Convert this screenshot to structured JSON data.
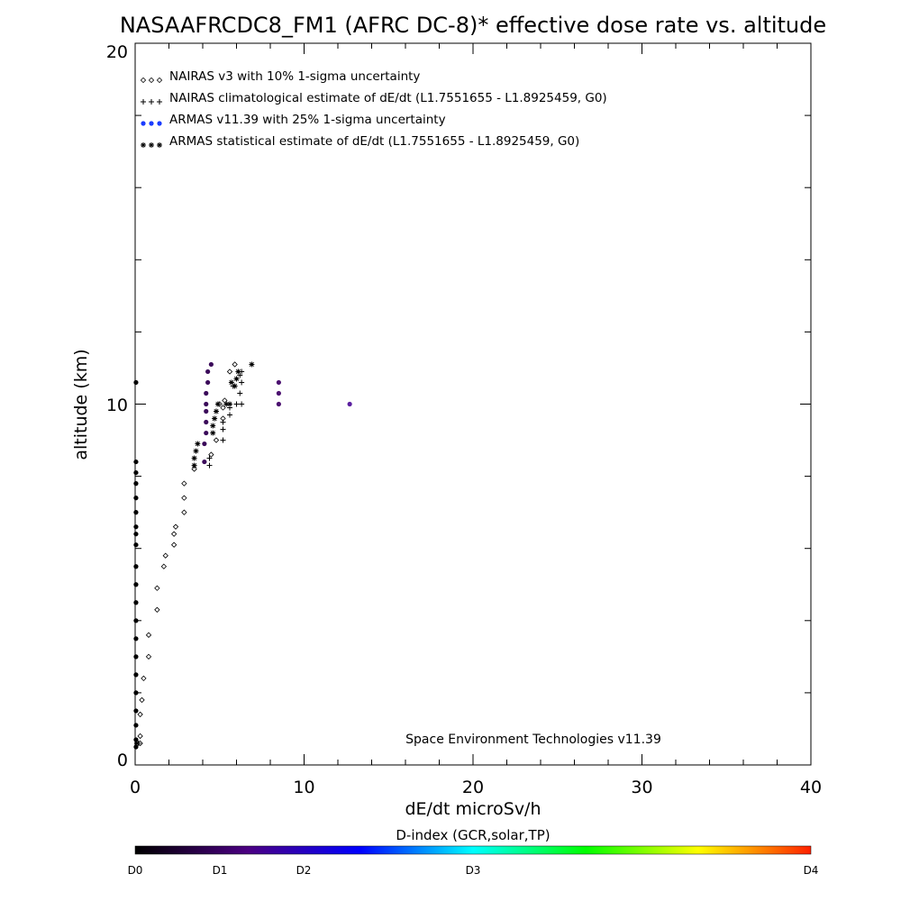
{
  "chart_data": {
    "type": "scatter",
    "title": "NASAAFRCDC8_FM1 (AFRC DC-8)* effective dose rate vs. altitude",
    "xlabel": "dE/dt microSv/h",
    "ylabel": "altitude (km)",
    "xlim": [
      0,
      40
    ],
    "ylim": [
      0,
      20
    ],
    "x_ticks": [
      "0",
      "10",
      "20",
      "30",
      "40"
    ],
    "y_ticks": [
      "0",
      "10",
      "20"
    ],
    "legend_placement": "top-left",
    "credit": "Space Environment Technologies v11.39",
    "colorbar": {
      "title": "D-index (GCR,solar,TP)",
      "labels": [
        "D0",
        "D1",
        "D2",
        "D3",
        "D4"
      ],
      "colors": [
        "#000000",
        "#4b0082",
        "#0000ff",
        "#00ffff",
        "#00ff00",
        "#ffff00",
        "#ff2000"
      ]
    },
    "series": [
      {
        "name": "NAIRAS v3 with 10% 1-sigma uncertainty",
        "marker": "diamond",
        "color": "#000000",
        "points": [
          [
            0.3,
            0.6
          ],
          [
            0.3,
            0.8
          ],
          [
            0.3,
            1.4
          ],
          [
            0.4,
            1.8
          ],
          [
            0.5,
            2.4
          ],
          [
            0.8,
            3.0
          ],
          [
            0.8,
            3.6
          ],
          [
            1.3,
            4.3
          ],
          [
            1.3,
            4.9
          ],
          [
            1.7,
            5.5
          ],
          [
            1.8,
            5.8
          ],
          [
            2.3,
            6.1
          ],
          [
            2.3,
            6.4
          ],
          [
            2.4,
            6.6
          ],
          [
            2.9,
            7.0
          ],
          [
            2.9,
            7.4
          ],
          [
            2.9,
            7.8
          ],
          [
            3.5,
            8.2
          ],
          [
            4.5,
            8.6
          ],
          [
            4.8,
            9.0
          ],
          [
            5.2,
            9.6
          ],
          [
            5.2,
            9.9
          ],
          [
            5.0,
            10.0
          ],
          [
            5.3,
            10.1
          ],
          [
            5.6,
            10.9
          ],
          [
            5.9,
            11.1
          ]
        ]
      },
      {
        "name": "NAIRAS climatological estimate of dE/dt (L1.7551655 - L1.8925459, G0)",
        "marker": "plus",
        "color": "#000000",
        "points": [
          [
            0.2,
            0.6
          ],
          [
            4.4,
            8.3
          ],
          [
            4.4,
            8.5
          ],
          [
            5.2,
            9.0
          ],
          [
            5.2,
            9.3
          ],
          [
            5.2,
            9.5
          ],
          [
            5.6,
            9.7
          ],
          [
            5.6,
            9.9
          ],
          [
            6.0,
            10.0
          ],
          [
            6.3,
            10.0
          ],
          [
            6.2,
            10.3
          ],
          [
            6.3,
            10.6
          ],
          [
            6.2,
            10.8
          ],
          [
            6.3,
            10.9
          ],
          [
            5.8,
            10.5
          ]
        ]
      },
      {
        "name": "ARMAS v11.39 with 25% 1-sigma uncertainty",
        "marker": "dot",
        "color": "#1a3cff",
        "points": [
          [
            0.05,
            0.5
          ],
          [
            0.05,
            0.7
          ],
          [
            0.05,
            1.1
          ],
          [
            0.05,
            1.5
          ],
          [
            0.05,
            2.0
          ],
          [
            0.05,
            2.5
          ],
          [
            0.05,
            3.0
          ],
          [
            0.05,
            3.5
          ],
          [
            0.05,
            4.0
          ],
          [
            0.05,
            4.5
          ],
          [
            0.05,
            5.0
          ],
          [
            0.05,
            5.5
          ],
          [
            0.05,
            6.1
          ],
          [
            0.05,
            6.4
          ],
          [
            0.05,
            6.6
          ],
          [
            0.05,
            7.0
          ],
          [
            0.05,
            7.4
          ],
          [
            0.05,
            7.8
          ],
          [
            0.05,
            8.1
          ],
          [
            0.05,
            8.4
          ],
          [
            0.05,
            10.6
          ],
          [
            4.1,
            8.4
          ],
          [
            4.1,
            8.9
          ],
          [
            4.2,
            9.2
          ],
          [
            4.2,
            9.5
          ],
          [
            4.2,
            9.8
          ],
          [
            4.2,
            10.0
          ],
          [
            4.2,
            10.3
          ],
          [
            4.3,
            10.6
          ],
          [
            4.3,
            10.9
          ],
          [
            4.5,
            11.1
          ],
          [
            8.5,
            10.0
          ],
          [
            8.5,
            10.3
          ],
          [
            8.5,
            10.6
          ],
          [
            12.7,
            10.0
          ]
        ],
        "colors": [
          "#000000",
          "#000000",
          "#000000",
          "#000000",
          "#000000",
          "#000000",
          "#000000",
          "#000000",
          "#000000",
          "#000000",
          "#000000",
          "#000000",
          "#000000",
          "#000000",
          "#000000",
          "#000000",
          "#000000",
          "#000000",
          "#000000",
          "#000000",
          "#000000",
          "#3b0a5a",
          "#3b0a5a",
          "#3b0a5a",
          "#3b0a5a",
          "#3b0a5a",
          "#3b0a5a",
          "#3b0a5a",
          "#3b0a5a",
          "#3b0a5a",
          "#3b0a5a",
          "#4b1070",
          "#4b1070",
          "#4b1070",
          "#5b1fa0"
        ]
      },
      {
        "name": "ARMAS statistical estimate of dE/dt (L1.7551655 - L1.8925459, G0)",
        "marker": "asterisk",
        "color": "#000000",
        "points": [
          [
            0.1,
            0.6
          ],
          [
            3.5,
            8.3
          ],
          [
            3.5,
            8.5
          ],
          [
            3.6,
            8.7
          ],
          [
            3.7,
            8.9
          ],
          [
            4.6,
            9.2
          ],
          [
            4.6,
            9.4
          ],
          [
            4.7,
            9.6
          ],
          [
            4.8,
            9.8
          ],
          [
            4.9,
            10.0
          ],
          [
            5.4,
            10.0
          ],
          [
            5.6,
            10.0
          ],
          [
            5.9,
            10.5
          ],
          [
            6.0,
            10.7
          ],
          [
            5.7,
            10.6
          ],
          [
            6.1,
            10.9
          ],
          [
            6.9,
            11.1
          ]
        ]
      }
    ]
  }
}
